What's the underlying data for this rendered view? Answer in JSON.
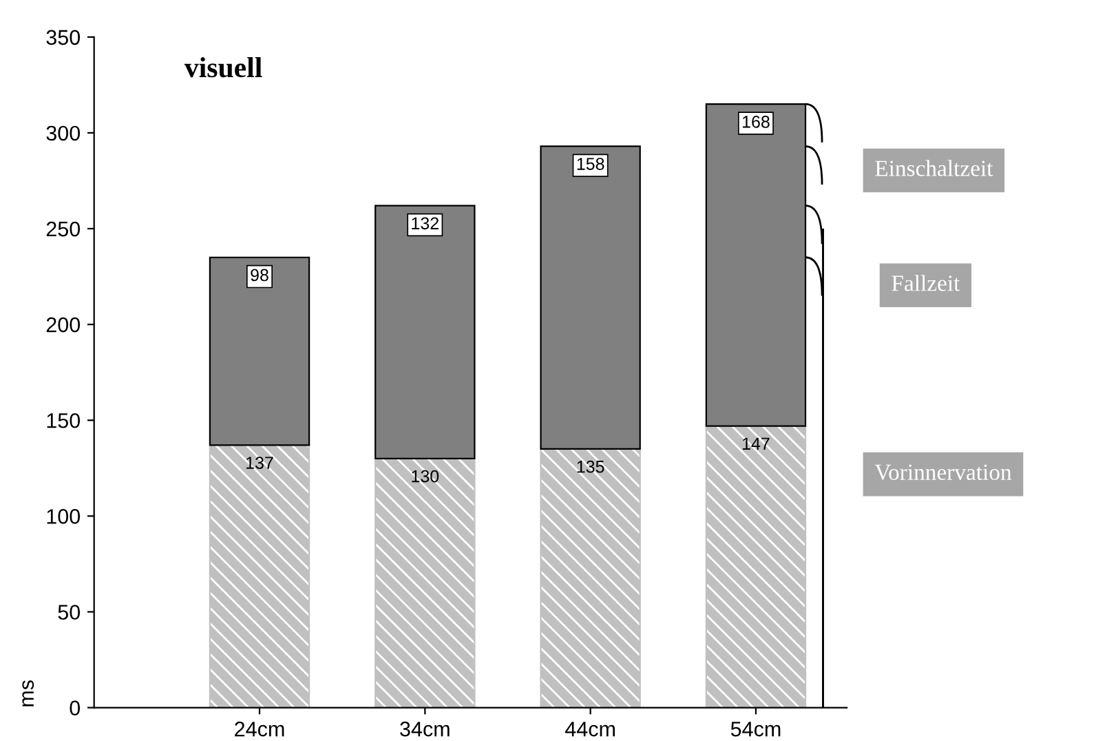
{
  "chart_data": {
    "type": "bar",
    "title": "visuell",
    "ylabel": "ms",
    "categories": [
      "24cm",
      "34cm",
      "44cm",
      "54cm"
    ],
    "series": [
      {
        "color": "#c0c0c0",
        "values": [
          137,
          130,
          135,
          147
        ]
      },
      {
        "color": "#808080",
        "values": [
          98,
          132,
          158,
          168
        ]
      }
    ],
    "stacked": true,
    "data_labels": true,
    "ylim": [
      0,
      350
    ],
    "yticks": [
      0,
      50,
      100,
      150,
      200,
      250,
      300,
      350
    ],
    "grid": false,
    "legend": false,
    "annotations": [
      "Einschaltzeit",
      "Fallzeit",
      "Vorinnervation"
    ]
  }
}
